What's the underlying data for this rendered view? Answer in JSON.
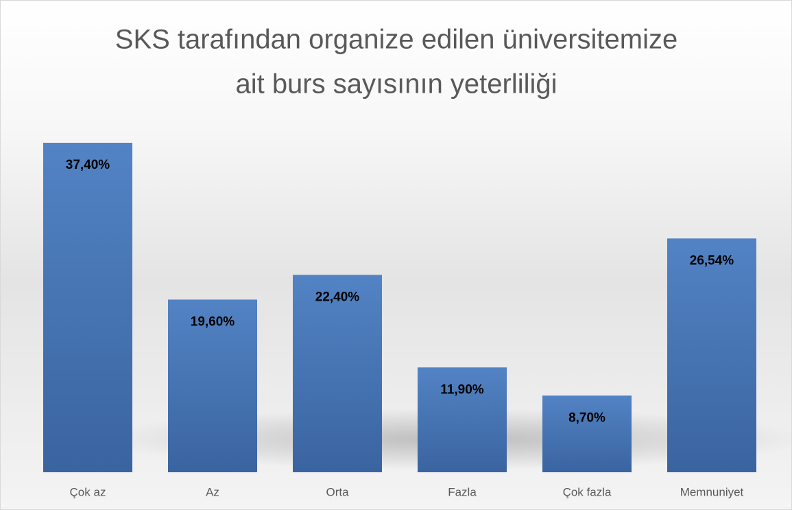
{
  "chart_data": {
    "type": "bar",
    "title": [
      "SKS tarafından organize edilen üniversitemize",
      "ait burs sayısının yeterliliği"
    ],
    "categories": [
      "Çok az",
      "Az",
      "Orta",
      "Fazla",
      "Çok fazla",
      "Memnuniyet"
    ],
    "values": [
      37.4,
      19.6,
      22.4,
      11.9,
      8.7,
      26.54
    ],
    "value_labels": [
      "37,40%",
      "19,60%",
      "22,40%",
      "11,90%",
      "8,70%",
      "26,54%"
    ],
    "color": "#4a78b5"
  }
}
